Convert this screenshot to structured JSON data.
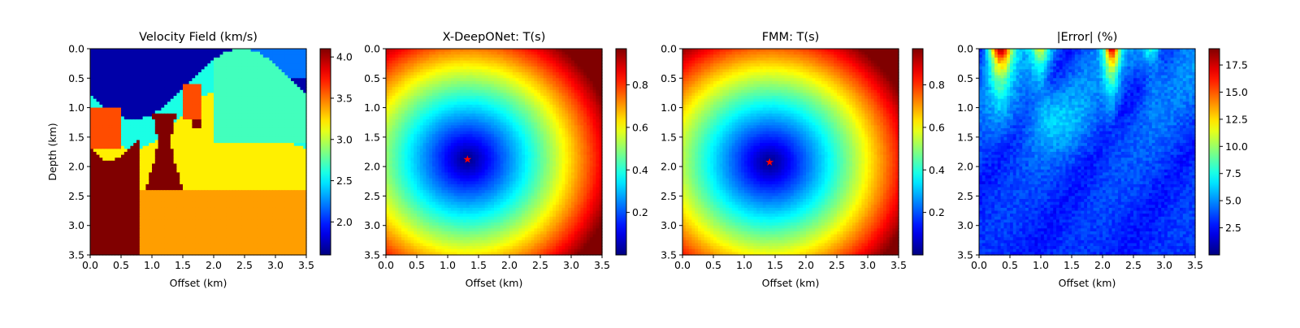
{
  "chart_data": [
    {
      "type": "heatmap",
      "title": "Velocity Field (km/s)",
      "xlabel": "Offset (km)",
      "ylabel": "Depth (km)",
      "xlim": [
        0,
        3.5
      ],
      "ylim": [
        3.5,
        0
      ],
      "x_ticks": [
        "0.0",
        "0.5",
        "1.0",
        "1.5",
        "2.0",
        "2.5",
        "3.0",
        "3.5"
      ],
      "y_ticks": [
        "0.0",
        "0.5",
        "1.0",
        "1.5",
        "2.0",
        "2.5",
        "3.0",
        "3.5"
      ],
      "colormap": "jet",
      "colorbar": {
        "range": [
          1.6,
          4.1
        ],
        "ticks": [
          "2.0",
          "2.5",
          "3.0",
          "3.5",
          "4.0"
        ]
      },
      "field": "velocity"
    },
    {
      "type": "heatmap",
      "title": "X-DeepONet: T(s)",
      "xlabel": "Offset (km)",
      "ylabel": "",
      "xlim": [
        0,
        3.5
      ],
      "ylim": [
        3.5,
        0
      ],
      "x_ticks": [
        "0.0",
        "0.5",
        "1.0",
        "1.5",
        "2.0",
        "2.5",
        "3.0",
        "3.5"
      ],
      "y_ticks": [
        "0.0",
        "0.5",
        "1.0",
        "1.5",
        "2.0",
        "2.5",
        "3.0",
        "3.5"
      ],
      "colormap": "jet",
      "colorbar": {
        "range": [
          0.0,
          0.97
        ],
        "ticks": [
          "0.2",
          "0.4",
          "0.6",
          "0.8"
        ]
      },
      "source": {
        "x": 1.32,
        "y": 1.88,
        "marker": "star",
        "color": "#ff0000"
      },
      "field": "traveltime"
    },
    {
      "type": "heatmap",
      "title": "FMM: T(s)",
      "xlabel": "Offset (km)",
      "ylabel": "",
      "xlim": [
        0,
        3.5
      ],
      "ylim": [
        3.5,
        0
      ],
      "x_ticks": [
        "0.0",
        "0.5",
        "1.0",
        "1.5",
        "2.0",
        "2.5",
        "3.0",
        "3.5"
      ],
      "y_ticks": [
        "0.0",
        "0.5",
        "1.0",
        "1.5",
        "2.0",
        "2.5",
        "3.0",
        "3.5"
      ],
      "colormap": "jet",
      "colorbar": {
        "range": [
          0.0,
          0.97
        ],
        "ticks": [
          "0.2",
          "0.4",
          "0.6",
          "0.8"
        ]
      },
      "source": {
        "x": 1.41,
        "y": 1.93,
        "marker": "star",
        "color": "#ff0000"
      },
      "field": "traveltime"
    },
    {
      "type": "heatmap",
      "title": "|Error| (%)",
      "xlabel": "Offset (km)",
      "ylabel": "",
      "xlim": [
        0,
        3.5
      ],
      "ylim": [
        3.5,
        0
      ],
      "x_ticks": [
        "0.0",
        "0.5",
        "1.0",
        "1.5",
        "2.0",
        "2.5",
        "3.0",
        "3.5"
      ],
      "y_ticks": [
        "0.0",
        "0.5",
        "1.0",
        "1.5",
        "2.0",
        "2.5",
        "3.0",
        "3.5"
      ],
      "colormap": "jet",
      "colorbar": {
        "range": [
          0.0,
          19.0
        ],
        "ticks": [
          "2.5",
          "5.0",
          "7.5",
          "10.0",
          "12.5",
          "15.0",
          "17.5"
        ]
      },
      "field": "error"
    }
  ]
}
